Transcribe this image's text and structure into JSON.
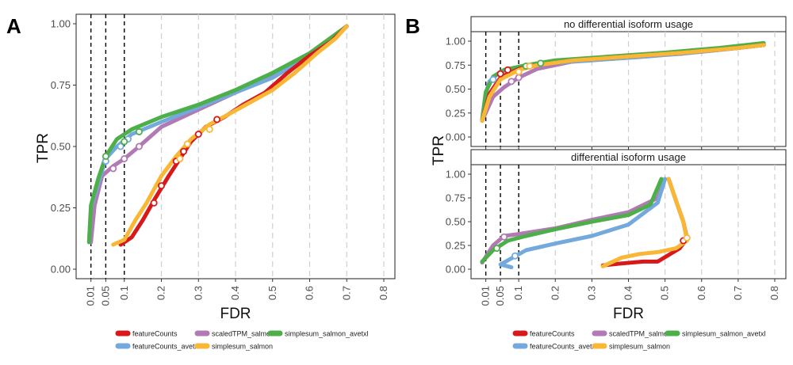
{
  "figure": {
    "panel_labels": [
      "A",
      "B"
    ]
  },
  "colors": {
    "featureCounts": "#d7191c",
    "featureCounts_avetxl": "#74a9dd",
    "scaledTPM_salmon": "#b27ab4",
    "simplesum_salmon": "#f8b735",
    "simplesum_salmon_avetxl": "#4daf4a"
  },
  "chart_data": [
    {
      "type": "line",
      "panel": "A",
      "xlabel": "FDR",
      "ylabel": "TPR",
      "xlim": [
        0,
        0.8
      ],
      "ylim": [
        0,
        1
      ],
      "x_tick_labels": [
        "0.01",
        "0.05",
        "0.1",
        "0.2",
        "0.3",
        "0.4",
        "0.5",
        "0.6",
        "0.7",
        "0.8"
      ],
      "y_tick_labels": [
        "0.00",
        "0.25",
        "0.50",
        "0.75",
        "1.00"
      ],
      "fdr_thresholds": [
        0.01,
        0.05,
        0.1
      ],
      "grid": "vertical dashed",
      "series": [
        {
          "name": "featureCounts",
          "points": [
            [
              0.09,
              0.1
            ],
            [
              0.12,
              0.13
            ],
            [
              0.15,
              0.2
            ],
            [
              0.18,
              0.28
            ],
            [
              0.22,
              0.38
            ],
            [
              0.25,
              0.45
            ],
            [
              0.28,
              0.52
            ],
            [
              0.32,
              0.58
            ],
            [
              0.37,
              0.62
            ],
            [
              0.42,
              0.67
            ],
            [
              0.48,
              0.72
            ],
            [
              0.54,
              0.8
            ],
            [
              0.6,
              0.87
            ],
            [
              0.66,
              0.93
            ],
            [
              0.7,
              0.99
            ]
          ],
          "markers": [
            [
              0.18,
              0.27
            ],
            [
              0.2,
              0.34
            ],
            [
              0.24,
              0.44
            ],
            [
              0.26,
              0.48
            ],
            [
              0.3,
              0.55
            ],
            [
              0.35,
              0.61
            ]
          ]
        },
        {
          "name": "featureCounts_avetxl",
          "points": [
            [
              0.005,
              0.11
            ],
            [
              0.01,
              0.25
            ],
            [
              0.03,
              0.35
            ],
            [
              0.05,
              0.45
            ],
            [
              0.08,
              0.5
            ],
            [
              0.12,
              0.55
            ],
            [
              0.2,
              0.6
            ],
            [
              0.3,
              0.66
            ],
            [
              0.4,
              0.72
            ],
            [
              0.5,
              0.78
            ],
            [
              0.6,
              0.87
            ],
            [
              0.7,
              0.99
            ]
          ],
          "markers": [
            [
              0.05,
              0.44
            ],
            [
              0.09,
              0.5
            ],
            [
              0.11,
              0.53
            ]
          ]
        },
        {
          "name": "scaledTPM_salmon",
          "points": [
            [
              0.01,
              0.11
            ],
            [
              0.02,
              0.26
            ],
            [
              0.04,
              0.38
            ],
            [
              0.07,
              0.42
            ],
            [
              0.1,
              0.45
            ],
            [
              0.14,
              0.5
            ],
            [
              0.2,
              0.58
            ],
            [
              0.3,
              0.65
            ],
            [
              0.4,
              0.72
            ],
            [
              0.5,
              0.79
            ],
            [
              0.6,
              0.87
            ],
            [
              0.7,
              0.99
            ]
          ],
          "markers": [
            [
              0.07,
              0.41
            ],
            [
              0.1,
              0.45
            ],
            [
              0.14,
              0.5
            ]
          ]
        },
        {
          "name": "simplesum_salmon",
          "points": [
            [
              0.07,
              0.1
            ],
            [
              0.1,
              0.12
            ],
            [
              0.13,
              0.2
            ],
            [
              0.16,
              0.27
            ],
            [
              0.2,
              0.38
            ],
            [
              0.24,
              0.46
            ],
            [
              0.28,
              0.53
            ],
            [
              0.33,
              0.59
            ],
            [
              0.38,
              0.63
            ],
            [
              0.44,
              0.68
            ],
            [
              0.5,
              0.73
            ],
            [
              0.56,
              0.8
            ],
            [
              0.62,
              0.88
            ],
            [
              0.67,
              0.94
            ],
            [
              0.7,
              0.99
            ]
          ],
          "markers": [
            [
              0.25,
              0.45
            ],
            [
              0.27,
              0.51
            ],
            [
              0.33,
              0.57
            ]
          ]
        },
        {
          "name": "simplesum_salmon_avetxl",
          "points": [
            [
              0.005,
              0.11
            ],
            [
              0.01,
              0.26
            ],
            [
              0.03,
              0.37
            ],
            [
              0.05,
              0.46
            ],
            [
              0.08,
              0.53
            ],
            [
              0.12,
              0.57
            ],
            [
              0.2,
              0.62
            ],
            [
              0.3,
              0.67
            ],
            [
              0.4,
              0.73
            ],
            [
              0.5,
              0.8
            ],
            [
              0.6,
              0.88
            ],
            [
              0.7,
              0.99
            ]
          ],
          "markers": [
            [
              0.05,
              0.46
            ],
            [
              0.1,
              0.52
            ],
            [
              0.14,
              0.56
            ]
          ]
        }
      ]
    },
    {
      "type": "line",
      "panel": "B",
      "facet_title": "no differential isoform usage",
      "xlabel": "FDR",
      "ylabel": "TPR",
      "xlim": [
        0,
        0.8
      ],
      "ylim": [
        0,
        1
      ],
      "x_tick_labels": [
        "0.01",
        "0.05",
        "0.1",
        "0.2",
        "0.3",
        "0.4",
        "0.5",
        "0.6",
        "0.7",
        "0.8"
      ],
      "y_tick_labels": [
        "0.00",
        "0.25",
        "0.50",
        "0.75",
        "1.00"
      ],
      "fdr_thresholds": [
        0.01,
        0.05,
        0.1
      ],
      "grid": "vertical dashed",
      "series": [
        {
          "name": "featureCounts",
          "points": [
            [
              0.0,
              0.17
            ],
            [
              0.02,
              0.45
            ],
            [
              0.05,
              0.62
            ],
            [
              0.1,
              0.71
            ],
            [
              0.15,
              0.75
            ],
            [
              0.25,
              0.8
            ],
            [
              0.4,
              0.84
            ],
            [
              0.55,
              0.88
            ],
            [
              0.7,
              0.93
            ],
            [
              0.77,
              0.96
            ]
          ],
          "markers": [
            [
              0.05,
              0.66
            ],
            [
              0.07,
              0.7
            ]
          ]
        },
        {
          "name": "featureCounts_avetxl",
          "points": [
            [
              0.0,
              0.17
            ],
            [
              0.01,
              0.45
            ],
            [
              0.02,
              0.58
            ],
            [
              0.04,
              0.65
            ],
            [
              0.08,
              0.7
            ],
            [
              0.15,
              0.76
            ],
            [
              0.3,
              0.8
            ],
            [
              0.45,
              0.84
            ],
            [
              0.6,
              0.89
            ],
            [
              0.7,
              0.93
            ],
            [
              0.77,
              0.96
            ]
          ],
          "markers": [
            [
              0.03,
              0.6
            ],
            [
              0.05,
              0.66
            ]
          ]
        },
        {
          "name": "scaledTPM_salmon",
          "points": [
            [
              0.0,
              0.17
            ],
            [
              0.03,
              0.42
            ],
            [
              0.06,
              0.52
            ],
            [
              0.1,
              0.62
            ],
            [
              0.15,
              0.71
            ],
            [
              0.25,
              0.79
            ],
            [
              0.4,
              0.83
            ],
            [
              0.55,
              0.87
            ],
            [
              0.7,
              0.93
            ],
            [
              0.77,
              0.96
            ]
          ],
          "markers": [
            [
              0.08,
              0.58
            ],
            [
              0.1,
              0.62
            ]
          ]
        },
        {
          "name": "simplesum_salmon",
          "points": [
            [
              0.0,
              0.17
            ],
            [
              0.02,
              0.42
            ],
            [
              0.05,
              0.6
            ],
            [
              0.1,
              0.7
            ],
            [
              0.15,
              0.75
            ],
            [
              0.25,
              0.8
            ],
            [
              0.4,
              0.84
            ],
            [
              0.55,
              0.88
            ],
            [
              0.7,
              0.93
            ],
            [
              0.77,
              0.96
            ]
          ],
          "markers": [
            [
              0.1,
              0.68
            ],
            [
              0.13,
              0.74
            ]
          ]
        },
        {
          "name": "simplesum_salmon_avetxl",
          "points": [
            [
              0.0,
              0.18
            ],
            [
              0.01,
              0.47
            ],
            [
              0.03,
              0.63
            ],
            [
              0.06,
              0.7
            ],
            [
              0.12,
              0.75
            ],
            [
              0.2,
              0.8
            ],
            [
              0.35,
              0.84
            ],
            [
              0.5,
              0.88
            ],
            [
              0.65,
              0.93
            ],
            [
              0.77,
              0.98
            ]
          ],
          "markers": [
            [
              0.12,
              0.74
            ],
            [
              0.16,
              0.77
            ]
          ]
        }
      ]
    },
    {
      "type": "line",
      "panel": "B",
      "facet_title": "differential isoform usage",
      "xlabel": "FDR",
      "ylabel": "TPR",
      "xlim": [
        0,
        0.8
      ],
      "ylim": [
        0,
        1
      ],
      "x_tick_labels": [
        "0.01",
        "0.05",
        "0.1",
        "0.2",
        "0.3",
        "0.4",
        "0.5",
        "0.6",
        "0.7",
        "0.8"
      ],
      "y_tick_labels": [
        "0.00",
        "0.25",
        "0.50",
        "0.75",
        "1.00"
      ],
      "fdr_thresholds": [
        0.01,
        0.05,
        0.1
      ],
      "grid": "vertical dashed",
      "series": [
        {
          "name": "featureCounts",
          "points": [
            [
              0.33,
              0.04
            ],
            [
              0.38,
              0.06
            ],
            [
              0.44,
              0.08
            ],
            [
              0.48,
              0.08
            ],
            [
              0.54,
              0.22
            ],
            [
              0.56,
              0.32
            ],
            [
              0.55,
              0.5
            ],
            [
              0.53,
              0.72
            ],
            [
              0.51,
              0.95
            ]
          ],
          "markers": [
            [
              0.55,
              0.3
            ]
          ]
        },
        {
          "name": "featureCounts_avetxl",
          "points": [
            [
              0.08,
              0.02
            ],
            [
              0.05,
              0.05
            ],
            [
              0.12,
              0.2
            ],
            [
              0.2,
              0.27
            ],
            [
              0.3,
              0.35
            ],
            [
              0.4,
              0.47
            ],
            [
              0.48,
              0.7
            ],
            [
              0.5,
              0.95
            ]
          ],
          "markers": [
            [
              0.09,
              0.14
            ]
          ]
        },
        {
          "name": "scaledTPM_salmon",
          "points": [
            [
              0.0,
              0.07
            ],
            [
              0.03,
              0.25
            ],
            [
              0.06,
              0.35
            ],
            [
              0.1,
              0.37
            ],
            [
              0.2,
              0.43
            ],
            [
              0.3,
              0.52
            ],
            [
              0.4,
              0.6
            ],
            [
              0.48,
              0.75
            ],
            [
              0.5,
              0.95
            ]
          ],
          "markers": [
            [
              0.06,
              0.34
            ]
          ]
        },
        {
          "name": "simplesum_salmon",
          "points": [
            [
              0.33,
              0.03
            ],
            [
              0.38,
              0.12
            ],
            [
              0.43,
              0.16
            ],
            [
              0.48,
              0.18
            ],
            [
              0.53,
              0.22
            ],
            [
              0.56,
              0.3
            ],
            [
              0.55,
              0.5
            ],
            [
              0.53,
              0.72
            ],
            [
              0.51,
              0.95
            ]
          ],
          "markers": [
            [
              0.56,
              0.33
            ]
          ]
        },
        {
          "name": "simplesum_salmon_avetxl",
          "points": [
            [
              0.0,
              0.08
            ],
            [
              0.03,
              0.2
            ],
            [
              0.07,
              0.3
            ],
            [
              0.12,
              0.35
            ],
            [
              0.2,
              0.42
            ],
            [
              0.3,
              0.5
            ],
            [
              0.4,
              0.57
            ],
            [
              0.46,
              0.68
            ],
            [
              0.49,
              0.95
            ]
          ],
          "markers": [
            [
              0.04,
              0.22
            ]
          ]
        }
      ]
    }
  ],
  "legend": {
    "placement": "bottom",
    "entries": [
      "featureCounts",
      "featureCounts_avetxl",
      "scaledTPM_salmon",
      "simplesum_salmon",
      "simplesum_salmon_avetxl"
    ]
  }
}
